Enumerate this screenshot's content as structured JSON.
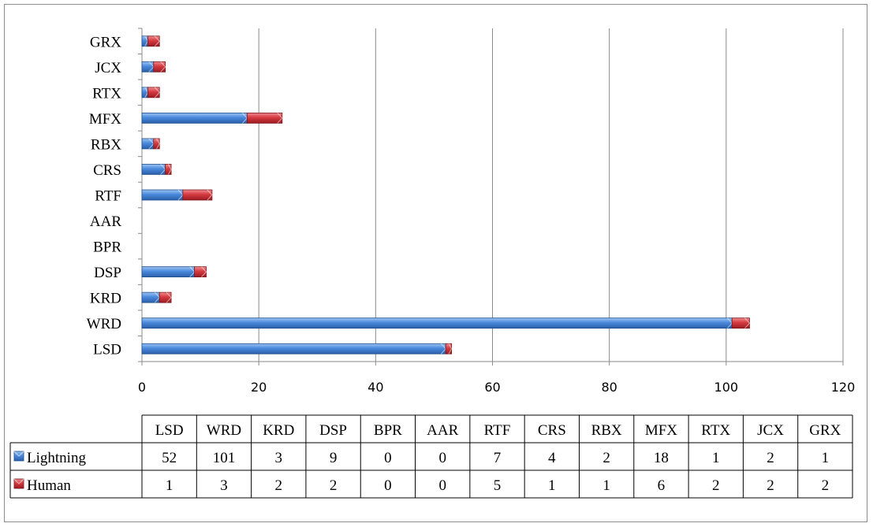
{
  "chart_data": {
    "type": "bar",
    "orientation": "horizontal",
    "stacked": true,
    "title": "",
    "xlabel": "",
    "ylabel": "",
    "xlim": [
      0,
      120
    ],
    "x_ticks": [
      0,
      20,
      40,
      60,
      80,
      100,
      120
    ],
    "grid": "vertical",
    "categories": [
      "LSD",
      "WRD",
      "KRD",
      "DSP",
      "BPR",
      "AAR",
      "RTF",
      "CRS",
      "RBX",
      "MFX",
      "RTX",
      "JCX",
      "GRX"
    ],
    "series": [
      {
        "name": "Lightning",
        "color": "#3f7fd6",
        "values": [
          52,
          101,
          3,
          9,
          0,
          0,
          7,
          4,
          2,
          18,
          1,
          2,
          1
        ]
      },
      {
        "name": "Human",
        "color": "#cc2f35",
        "values": [
          1,
          3,
          2,
          2,
          0,
          0,
          5,
          1,
          1,
          6,
          2,
          2,
          2
        ]
      }
    ],
    "data_table": true
  }
}
